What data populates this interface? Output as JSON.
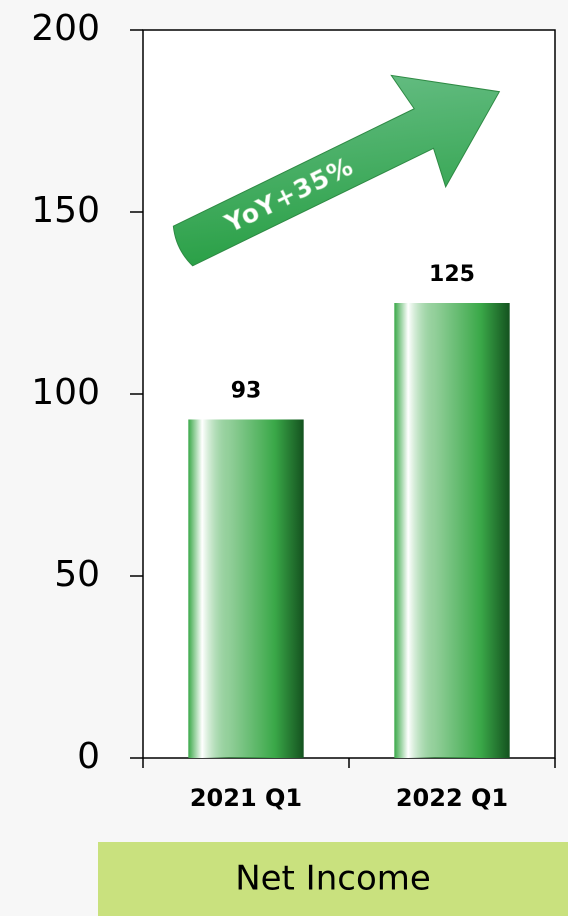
{
  "chart_data": {
    "type": "bar",
    "categories": [
      "2021 Q1",
      "2022 Q1"
    ],
    "values": [
      93,
      125
    ],
    "color": "#3aa848",
    "ylim": [
      0,
      200
    ],
    "yticks": [
      0,
      50,
      100,
      150,
      200
    ],
    "xlabel": "Net Income",
    "annotation": "YoY+35%"
  }
}
